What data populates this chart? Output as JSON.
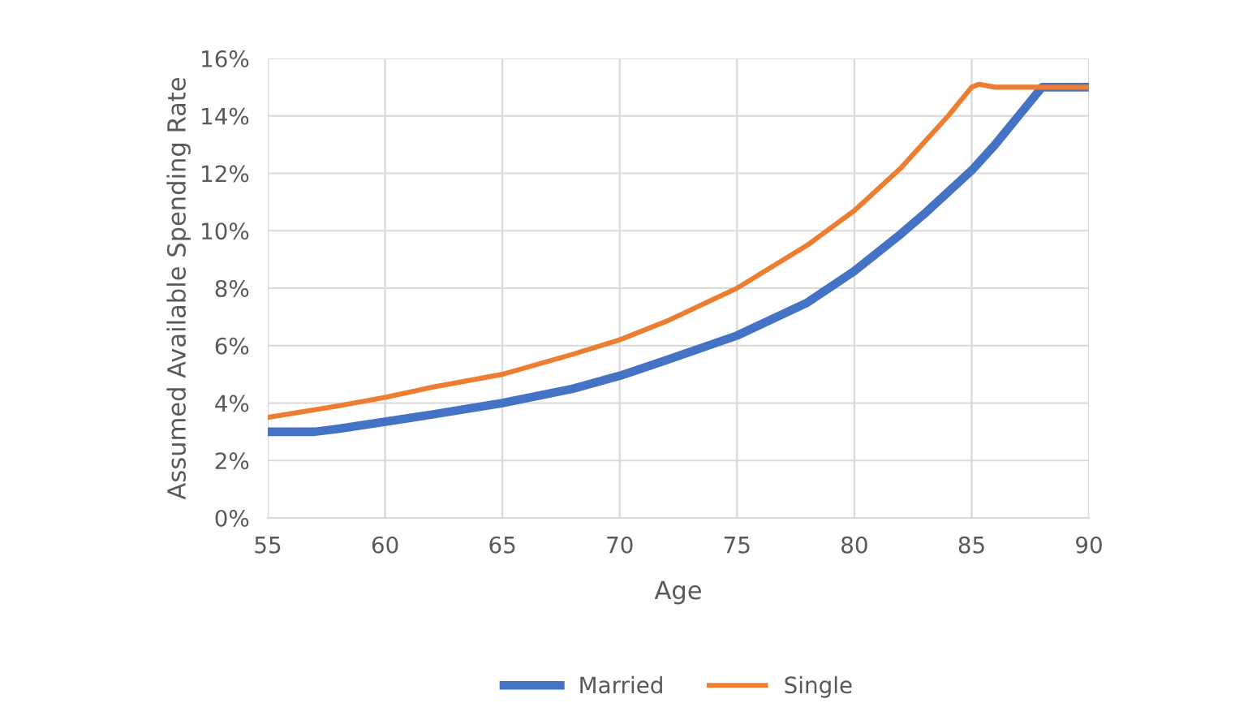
{
  "chart_data": {
    "type": "line",
    "xlabel": "Age",
    "ylabel": "Assumed Available Spending Rate",
    "xlim": [
      55,
      90
    ],
    "xticks": [
      55,
      60,
      65,
      70,
      75,
      80,
      85,
      90
    ],
    "ylim": [
      0,
      16
    ],
    "yticks": [
      {
        "value": 0,
        "label": "0%"
      },
      {
        "value": 2,
        "label": "2%"
      },
      {
        "value": 4,
        "label": "4%"
      },
      {
        "value": 6,
        "label": "6%"
      },
      {
        "value": 8,
        "label": "8%"
      },
      {
        "value": 10,
        "label": "10%"
      },
      {
        "value": 12,
        "label": "12%"
      },
      {
        "value": 14,
        "label": "14%"
      },
      {
        "value": 16,
        "label": "16%"
      }
    ],
    "grid": true,
    "legend": "bottom",
    "marker": "none",
    "line_style": "solid",
    "series": [
      {
        "name": "Married",
        "color": "#4472c4",
        "x": [
          55,
          57,
          58,
          60,
          62,
          65,
          68,
          70,
          72,
          75,
          78,
          80,
          82,
          83,
          85,
          86,
          87,
          88,
          89,
          90
        ],
        "values": [
          3.0,
          3.0,
          3.1,
          3.35,
          3.6,
          4.0,
          4.5,
          4.95,
          5.5,
          6.35,
          7.5,
          8.6,
          9.9,
          10.6,
          12.1,
          13.0,
          14.0,
          15.0,
          15.0,
          15.0
        ]
      },
      {
        "name": "Single",
        "color": "#ed7d31",
        "x": [
          55,
          58,
          60,
          62,
          65,
          68,
          70,
          72,
          75,
          78,
          80,
          82,
          84,
          85,
          85.3,
          86,
          88,
          90
        ],
        "values": [
          3.5,
          3.9,
          4.2,
          4.55,
          5.0,
          5.7,
          6.2,
          6.85,
          8.0,
          9.5,
          10.7,
          12.2,
          14.0,
          15.0,
          15.1,
          15.0,
          15.0,
          15.0
        ]
      }
    ]
  }
}
